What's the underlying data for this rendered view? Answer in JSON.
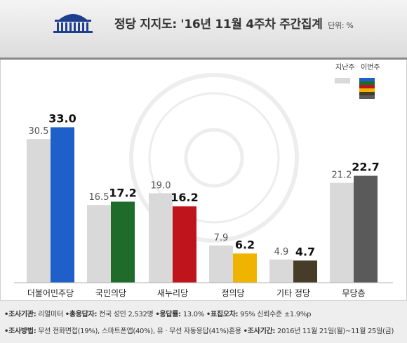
{
  "title": {
    "main": "정당 지지도: '16년 11월 4주차 주간집계",
    "unit": "단위: %"
  },
  "legend": {
    "prev_label": "지난주",
    "curr_label": "이번주"
  },
  "colors": {
    "prev_bar": "#d9d9d9",
    "minju": "#1f5fc9",
    "kookmin": "#1e6b2a",
    "saenuri": "#c0141c",
    "jeongui": "#f0b400",
    "other": "#473c28",
    "none": "#5a5a5a"
  },
  "chart_data": {
    "type": "bar",
    "categories": [
      "더불어민주당",
      "국민의당",
      "새누리당",
      "정의당",
      "기타 정당",
      "무당층"
    ],
    "series": [
      {
        "name": "지난주",
        "values": [
          30.5,
          16.5,
          19.0,
          7.9,
          4.9,
          21.2
        ]
      },
      {
        "name": "이번주",
        "values": [
          33.0,
          17.2,
          16.2,
          6.2,
          4.7,
          22.7
        ]
      }
    ],
    "prev_labels": [
      "30.5",
      "16.5",
      "19.0",
      "7.9",
      "4.9",
      "21.2"
    ],
    "curr_labels": [
      "33.0",
      "17.2",
      "16.2",
      "6.2",
      "4.7",
      "22.7"
    ],
    "ylim": [
      0,
      35
    ],
    "grid": false,
    "legend_position": "top-right"
  },
  "footer": {
    "line1": [
      {
        "label": "•조사기관:",
        "value": " 리얼미터 "
      },
      {
        "label": "•총응답자:",
        "value": " 전국 성인 2,532명 "
      },
      {
        "label": "•응답률:",
        "value": " 13.0% "
      },
      {
        "label": "•표집오차:",
        "value": " 95% 신뢰수준 ±1.9%p"
      }
    ],
    "line2": [
      {
        "label": "•조사방법:",
        "value": " 무선 전화면접(19%), 스마트폰앱(40%), 유 · 무선 자동응답(41%)혼용 "
      },
      {
        "label": "•조사기간:",
        "value": " 2016년 11월 21일(월)~11월 25일(금)"
      }
    ]
  }
}
